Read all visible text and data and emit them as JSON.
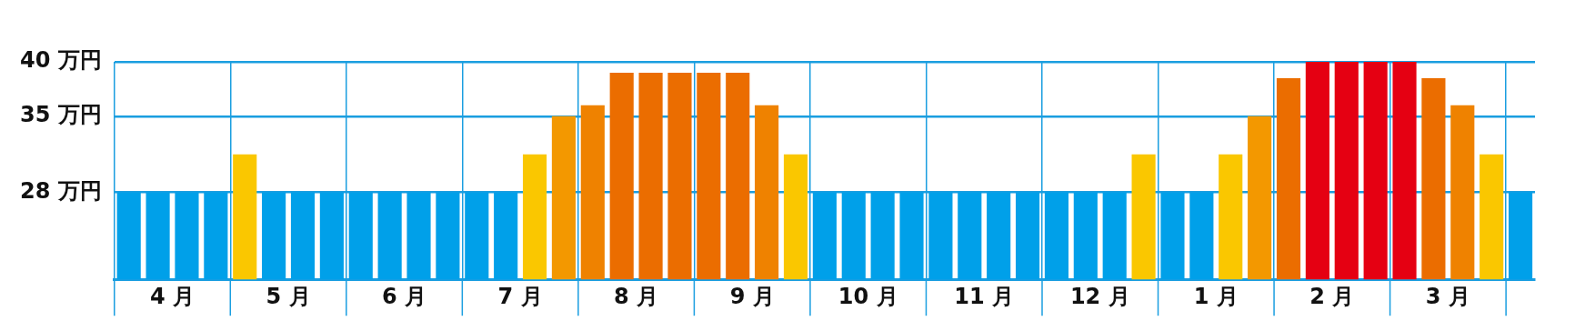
{
  "chart_data": {
    "type": "bar",
    "categories": [
      null,
      null,
      "4 月",
      null,
      null,
      null,
      "5 月",
      null,
      null,
      null,
      "6 月",
      null,
      null,
      null,
      "7 月",
      null,
      null,
      null,
      "8 月",
      null,
      null,
      null,
      "9 月",
      null,
      null,
      null,
      "10 月",
      null,
      null,
      null,
      "11 月",
      null,
      null,
      null,
      "12 月",
      null,
      null,
      null,
      "1 月",
      null,
      null,
      null,
      "2 月",
      null,
      null,
      null,
      "3 月",
      null,
      null
    ],
    "values": [
      28,
      28,
      28,
      28,
      31.5,
      28,
      28,
      28,
      28,
      28,
      28,
      28,
      28,
      28,
      31.5,
      35,
      36,
      39,
      39,
      39,
      39,
      39,
      36,
      31.5,
      28,
      28,
      28,
      28,
      28,
      28,
      28,
      28,
      28,
      28,
      28,
      31.5,
      28,
      28,
      31.5,
      35,
      38.5,
      40,
      40,
      40,
      40,
      38.5,
      36,
      31.5,
      28
    ],
    "colors": [
      "#00a0e9",
      "#00a0e9",
      "#00a0e9",
      "#00a0e9",
      "#fac700",
      "#00a0e9",
      "#00a0e9",
      "#00a0e9",
      "#00a0e9",
      "#00a0e9",
      "#00a0e9",
      "#00a0e9",
      "#00a0e9",
      "#00a0e9",
      "#fac700",
      "#f39800",
      "#ef8200",
      "#eb6d00",
      "#eb6d00",
      "#eb6d00",
      "#eb6d00",
      "#eb6d00",
      "#ef8200",
      "#fac700",
      "#00a0e9",
      "#00a0e9",
      "#00a0e9",
      "#00a0e9",
      "#00a0e9",
      "#00a0e9",
      "#00a0e9",
      "#00a0e9",
      "#00a0e9",
      "#00a0e9",
      "#00a0e9",
      "#fac700",
      "#00a0e9",
      "#00a0e9",
      "#fac700",
      "#f39800",
      "#eb6d00",
      "#e50012",
      "#e50012",
      "#e50012",
      "#e50012",
      "#eb6d00",
      "#ef8200",
      "#fac700",
      "#00a0e9"
    ],
    "ylim": [
      20,
      40
    ],
    "yticks": [
      {
        "value": 28,
        "label": "28 万円"
      },
      {
        "value": 35,
        "label": "35 万円"
      },
      {
        "value": 40,
        "label": "40 万円"
      }
    ],
    "grid": true
  }
}
